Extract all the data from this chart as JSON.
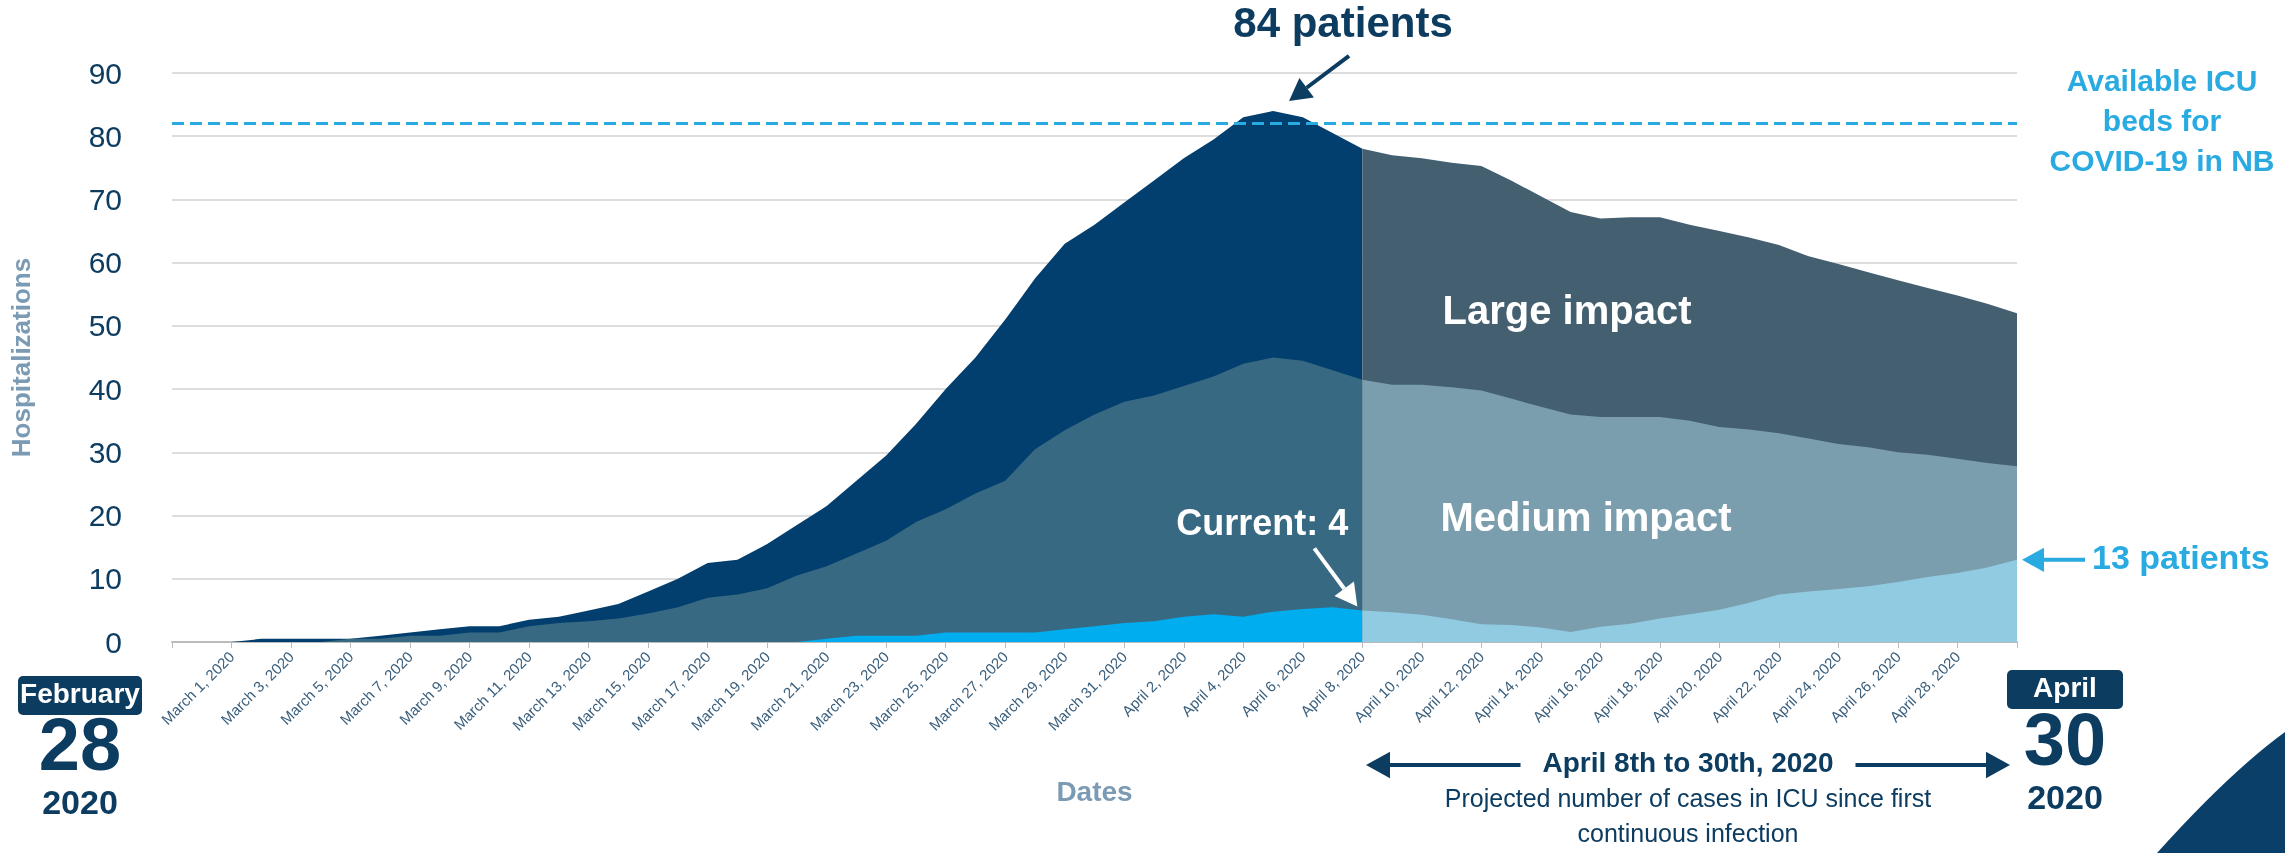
{
  "chart_data": {
    "type": "area",
    "xlabel": "Dates",
    "ylabel": "Hospitalizations",
    "xlim": [
      "2020-02-28",
      "2020-04-30"
    ],
    "ylim": [
      0,
      90
    ],
    "yticks": [
      0,
      10,
      20,
      30,
      40,
      50,
      60,
      70,
      80,
      90
    ],
    "xticks": [
      {
        "value": "2020-02-28",
        "label": null
      },
      {
        "value": "2020-03-01",
        "label": "March 1, 2020"
      },
      {
        "value": "2020-03-03",
        "label": "March 3, 2020"
      },
      {
        "value": "2020-03-05",
        "label": "March 5, 2020"
      },
      {
        "value": "2020-03-07",
        "label": "March 7, 2020"
      },
      {
        "value": "2020-03-09",
        "label": "March 9, 2020"
      },
      {
        "value": "2020-03-11",
        "label": "March 11, 2020"
      },
      {
        "value": "2020-03-13",
        "label": "March 13, 2020"
      },
      {
        "value": "2020-03-15",
        "label": "March 15, 2020"
      },
      {
        "value": "2020-03-17",
        "label": "March 17, 2020"
      },
      {
        "value": "2020-03-19",
        "label": "March 19, 2020"
      },
      {
        "value": "2020-03-21",
        "label": "March 21, 2020"
      },
      {
        "value": "2020-03-23",
        "label": "March 23, 2020"
      },
      {
        "value": "2020-03-25",
        "label": "March 25, 2020"
      },
      {
        "value": "2020-03-27",
        "label": "March 27, 2020"
      },
      {
        "value": "2020-03-29",
        "label": "March 29, 2020"
      },
      {
        "value": "2020-03-31",
        "label": "March 31, 2020"
      },
      {
        "value": "2020-04-02",
        "label": "April 2, 2020"
      },
      {
        "value": "2020-04-04",
        "label": "April 4, 2020"
      },
      {
        "value": "2020-04-06",
        "label": "April 6, 2020"
      },
      {
        "value": "2020-04-08",
        "label": "April 8, 2020"
      },
      {
        "value": "2020-04-10",
        "label": "April 10, 2020"
      },
      {
        "value": "2020-04-12",
        "label": "April 12, 2020"
      },
      {
        "value": "2020-04-14",
        "label": "April 14, 2020"
      },
      {
        "value": "2020-04-16",
        "label": "April 16, 2020"
      },
      {
        "value": "2020-04-18",
        "label": "April 18, 2020"
      },
      {
        "value": "2020-04-20",
        "label": "April 20, 2020"
      },
      {
        "value": "2020-04-22",
        "label": "April 22, 2020"
      },
      {
        "value": "2020-04-24",
        "label": "April 24, 2020"
      },
      {
        "value": "2020-04-26",
        "label": "April 26, 2020"
      },
      {
        "value": "2020-04-28",
        "label": "April 28, 2020"
      },
      {
        "value": "2020-04-30",
        "label": null
      }
    ],
    "grid": "y",
    "series": [
      {
        "color": "#023f6e",
        "x": [
          "2020-03-01",
          "2020-03-02",
          "2020-03-03",
          "2020-03-04",
          "2020-03-05",
          "2020-03-06",
          "2020-03-07",
          "2020-03-08",
          "2020-03-09",
          "2020-03-10",
          "2020-03-11",
          "2020-03-12",
          "2020-03-13",
          "2020-03-14",
          "2020-03-15",
          "2020-03-16",
          "2020-03-17",
          "2020-03-18",
          "2020-03-19",
          "2020-03-20",
          "2020-03-21",
          "2020-03-22",
          "2020-03-23",
          "2020-03-24",
          "2020-03-25",
          "2020-03-26",
          "2020-03-27",
          "2020-03-28",
          "2020-03-29",
          "2020-03-30",
          "2020-03-31",
          "2020-04-01",
          "2020-04-02",
          "2020-04-03",
          "2020-04-04",
          "2020-04-05",
          "2020-04-06",
          "2020-04-07",
          "2020-04-08"
        ],
        "values": [
          0,
          0.5,
          0.5,
          0.5,
          0.5,
          1,
          1.5,
          2,
          2.5,
          2.5,
          3.5,
          4,
          5,
          6,
          8,
          10,
          12.5,
          13,
          15.5,
          18.5,
          21.5,
          25.5,
          29.5,
          34.5,
          40,
          45,
          51,
          57.5,
          63,
          66,
          69.5,
          73,
          76.5,
          79.5,
          83,
          84,
          83,
          80.5,
          78
        ]
      },
      {
        "color": "#445f70",
        "x": [
          "2020-04-08",
          "2020-04-09",
          "2020-04-10",
          "2020-04-11",
          "2020-04-12",
          "2020-04-13",
          "2020-04-14",
          "2020-04-15",
          "2020-04-16",
          "2020-04-17",
          "2020-04-18",
          "2020-04-19",
          "2020-04-20",
          "2020-04-21",
          "2020-04-22",
          "2020-04-23",
          "2020-04-24",
          "2020-04-25",
          "2020-04-26",
          "2020-04-27",
          "2020-04-28",
          "2020-04-29",
          "2020-04-30"
        ],
        "values": [
          78,
          77,
          76.5,
          75.8,
          75.3,
          73,
          70.5,
          68,
          67,
          67.2,
          67.2,
          66,
          65,
          64,
          62.8,
          61,
          59.8,
          58.5,
          57.2,
          56,
          54.8,
          53.5,
          52
        ]
      },
      {
        "color": "#386982",
        "x": [
          "2020-03-01",
          "2020-03-02",
          "2020-03-03",
          "2020-03-04",
          "2020-03-05",
          "2020-03-06",
          "2020-03-07",
          "2020-03-08",
          "2020-03-09",
          "2020-03-10",
          "2020-03-11",
          "2020-03-12",
          "2020-03-13",
          "2020-03-14",
          "2020-03-15",
          "2020-03-16",
          "2020-03-17",
          "2020-03-18",
          "2020-03-19",
          "2020-03-20",
          "2020-03-21",
          "2020-03-22",
          "2020-03-23",
          "2020-03-24",
          "2020-03-25",
          "2020-03-26",
          "2020-03-27",
          "2020-03-28",
          "2020-03-29",
          "2020-03-30",
          "2020-03-31",
          "2020-04-01",
          "2020-04-02",
          "2020-04-03",
          "2020-04-04",
          "2020-04-05",
          "2020-04-06",
          "2020-04-07",
          "2020-04-08"
        ],
        "values": [
          0,
          0,
          0,
          0,
          0.5,
          0.5,
          1,
          1,
          1.5,
          1.5,
          2.5,
          3,
          3.3,
          3.7,
          4.5,
          5.5,
          7,
          7.5,
          8.5,
          10.5,
          12,
          14,
          16,
          19,
          21,
          23.5,
          25.5,
          30.5,
          33.5,
          36,
          38,
          39,
          40.5,
          42,
          44,
          45,
          44.5,
          43,
          41.5
        ]
      },
      {
        "color": "#7a9ead",
        "x": [
          "2020-04-08",
          "2020-04-09",
          "2020-04-10",
          "2020-04-11",
          "2020-04-12",
          "2020-04-13",
          "2020-04-14",
          "2020-04-15",
          "2020-04-16",
          "2020-04-17",
          "2020-04-18",
          "2020-04-19",
          "2020-04-20",
          "2020-04-21",
          "2020-04-22",
          "2020-04-23",
          "2020-04-24",
          "2020-04-25",
          "2020-04-26",
          "2020-04-27",
          "2020-04-28",
          "2020-04-29",
          "2020-04-30"
        ],
        "values": [
          41.5,
          40.7,
          40.7,
          40.3,
          39.8,
          38.5,
          37.2,
          36,
          35.6,
          35.6,
          35.6,
          35,
          34,
          33.6,
          33,
          32.2,
          31.3,
          30.8,
          30,
          29.6,
          29,
          28.3,
          27.8
        ]
      },
      {
        "color": "#00adef",
        "x": [
          "2020-03-20",
          "2020-03-21",
          "2020-03-22",
          "2020-03-23",
          "2020-03-24",
          "2020-03-25",
          "2020-03-26",
          "2020-03-27",
          "2020-03-28",
          "2020-03-29",
          "2020-03-30",
          "2020-03-31",
          "2020-04-01",
          "2020-04-02",
          "2020-04-03",
          "2020-04-04",
          "2020-04-05",
          "2020-04-06",
          "2020-04-07",
          "2020-04-08"
        ],
        "values": [
          0,
          0.5,
          1,
          1,
          1,
          1.5,
          1.5,
          1.5,
          1.5,
          2,
          2.5,
          3,
          3.3,
          4,
          4.4,
          4,
          4.8,
          5.2,
          5.5,
          5
        ]
      },
      {
        "color": "#90cbe2",
        "x": [
          "2020-04-08",
          "2020-04-09",
          "2020-04-10",
          "2020-04-11",
          "2020-04-12",
          "2020-04-13",
          "2020-04-14",
          "2020-04-15",
          "2020-04-16",
          "2020-04-17",
          "2020-04-18",
          "2020-04-19",
          "2020-04-20",
          "2020-04-21",
          "2020-04-22",
          "2020-04-23",
          "2020-04-24",
          "2020-04-25",
          "2020-04-26",
          "2020-04-27",
          "2020-04-28",
          "2020-04-29",
          "2020-04-30"
        ],
        "values": [
          5,
          4.7,
          4.3,
          3.6,
          2.8,
          2.7,
          2.3,
          1.6,
          2.4,
          2.9,
          3.7,
          4.4,
          5.1,
          6.2,
          7.5,
          8,
          8.4,
          8.8,
          9.5,
          10.3,
          10.9,
          11.8,
          13
        ]
      }
    ],
    "ref_lines": [
      {
        "axis": "y",
        "value": 82,
        "label": "Available ICU beds for COVID-19 in NB",
        "color": "#29abe2",
        "line_style": "dashed"
      }
    ],
    "annotations": [
      {
        "text": "84 patients",
        "x": "2020-04-05",
        "y": 84
      },
      {
        "text": "Current: 4",
        "x": "2020-04-08",
        "y": 5
      },
      {
        "text": "13 patients",
        "x": "2020-04-30",
        "y": 13
      },
      "Large impact",
      "Medium impact",
      "February",
      "28",
      "2020",
      "April",
      "30",
      "2020",
      "April 8th to 30th, 2020",
      "Projected number of cases in ICU since first continuous infection"
    ]
  }
}
